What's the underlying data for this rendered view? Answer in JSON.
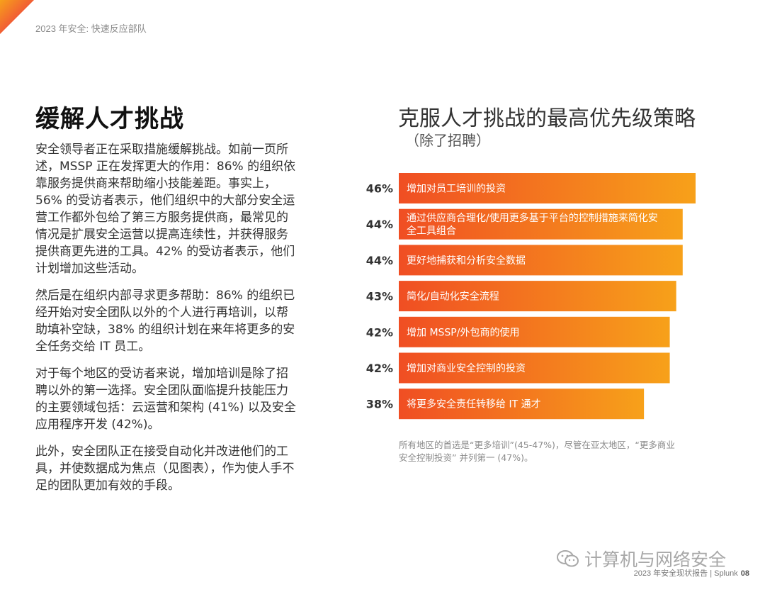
{
  "header": {
    "text": "2023 年安全: 快速反应部队"
  },
  "left": {
    "title": "缓解人才挑战",
    "paragraphs": [
      "安全领导者正在采取措施缓解挑战。如前一页所述，MSSP 正在发挥更大的作用：86% 的组织依靠服务提供商来帮助缩小技能差距。事实上，56% 的受访者表示，他们组织中的大部分安全运营工作都外包给了第三方服务提供商，最常见的情况是扩展安全运营以提高连续性，并获得服务提供商更先进的工具。42% 的受访者表示，他们计划增加这些活动。",
      "然后是在组织内部寻求更多帮助：86% 的组织已经开始对安全团队以外的个人进行再培训，以帮助填补空缺，38% 的组织计划在来年将更多的安全任务交给 IT 员工。",
      "对于每个地区的受访者来说，增加培训是除了招聘以外的第一选择。安全团队面临提升技能压力的主要领域包括：云运营和架构 (41%) 以及安全应用程序开发 (42%)。",
      "此外，安全团队正在接受自动化并改进他们的工具，并使数据成为焦点（见图表），作为使人手不足的团队更加有效的手段。"
    ]
  },
  "chart_data": {
    "type": "bar",
    "orientation": "horizontal",
    "title": "克服人才挑战的最高优先级策略",
    "subtitle": "（除了招聘）",
    "categories": [
      "增加对员工培训的投资",
      "通过供应商合理化/使用更多基于平台的控制措施来简化安全工具组合",
      "更好地捕获和分析安全数据",
      "简化/自动化安全流程",
      "增加 MSSP/外包商的使用",
      "增加对商业安全控制的投资",
      "将更多安全责任转移给 IT 通才"
    ],
    "values": [
      46,
      44,
      44,
      43,
      42,
      42,
      38
    ],
    "value_labels": [
      "46%",
      "44%",
      "44%",
      "43%",
      "42%",
      "42%",
      "38%"
    ],
    "category_lines": [
      [
        "增加对员工培训的投资"
      ],
      [
        "通过供应商合理化/使用更多基于平台的控制措施来简化安",
        "全工具组合"
      ],
      [
        "更好地捕获和分析安全数据"
      ],
      [
        "简化/自动化安全流程"
      ],
      [
        "增加 MSSP/外包商的使用"
      ],
      [
        "增加对商业安全控制的投资"
      ],
      [
        "将更多安全责任转移给 IT 通才"
      ]
    ],
    "colors": {
      "bar_start": "#f04e23",
      "bar_end": "#f7a11a",
      "label": "#ffffff",
      "value": "#333333"
    },
    "note": "所有地区的首选是“更多培训”(45-47%)，尽管在亚太地区，“更多商业安全控制投资” 并列第一 (47%)。"
  },
  "watermark": {
    "text": "计算机与网络安全",
    "icon": "wechat-icon"
  },
  "footer": {
    "text": "2023 年安全现状报告 | Splunk",
    "page": "08"
  }
}
